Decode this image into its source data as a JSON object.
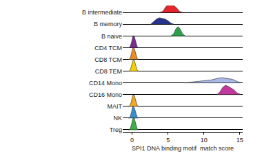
{
  "chart_data": {
    "type": "ridgeline",
    "xlabel": "SPI1 DNA binding motif  match score",
    "xlim": [
      -1.3,
      15.4
    ],
    "xticks": [
      0,
      5,
      10,
      15
    ],
    "grid": true,
    "categories": [
      "B intermediate",
      "B memory",
      "B naive",
      "CD4 TCM",
      "CD8 TCM",
      "CD8 TEM",
      "CD14 Mono",
      "CD16 Mono",
      "MAIT",
      "NK",
      "Treg"
    ],
    "series": [
      {
        "name": "B intermediate",
        "color": "#e3262b",
        "x": [
          3.8,
          4.3,
          4.7,
          5.0,
          5.3,
          5.6,
          5.9,
          6.2,
          6.6,
          7.0
        ],
        "values": [
          0,
          0.1,
          0.5,
          0.65,
          0.7,
          0.6,
          0.55,
          0.4,
          0.1,
          0
        ]
      },
      {
        "name": "B memory",
        "color": "#27338f",
        "x": [
          2.6,
          3.0,
          3.4,
          3.8,
          4.2,
          4.6,
          5.0,
          5.4,
          5.8
        ],
        "values": [
          0,
          0.2,
          0.45,
          0.55,
          0.5,
          0.45,
          0.3,
          0.1,
          0
        ]
      },
      {
        "name": "B naive",
        "color": "#2ca048",
        "x": [
          5.4,
          5.8,
          6.1,
          6.4,
          6.7,
          7.0,
          7.4
        ],
        "values": [
          0,
          0.2,
          0.6,
          0.8,
          0.6,
          0.2,
          0
        ]
      },
      {
        "name": "CD4 TCM",
        "color": "#7b2d8e",
        "x": [
          -0.5,
          -0.3,
          -0.1,
          0.1,
          0.3,
          0.5,
          0.7,
          0.9
        ],
        "values": [
          0,
          0.05,
          0.4,
          0.95,
          1.0,
          0.5,
          0.1,
          0
        ]
      },
      {
        "name": "CD8 TCM",
        "color": "#f08a24",
        "x": [
          -0.5,
          -0.3,
          -0.1,
          0.1,
          0.3,
          0.5,
          0.7,
          0.9
        ],
        "values": [
          0,
          0.05,
          0.45,
          1.0,
          0.95,
          0.45,
          0.1,
          0
        ]
      },
      {
        "name": "CD8 TEM",
        "color": "#f5d000",
        "x": [
          -0.5,
          -0.3,
          -0.1,
          0.1,
          0.3,
          0.5,
          0.7,
          0.9
        ],
        "values": [
          0,
          0.05,
          0.4,
          0.9,
          0.95,
          0.5,
          0.1,
          0
        ]
      },
      {
        "name": "CD14 Mono",
        "color": "#a9b8e6",
        "x": [
          7.2,
          8,
          9,
          10,
          11,
          12,
          12.5,
          13,
          13.5,
          14,
          14.5,
          15.2
        ],
        "values": [
          0,
          0.05,
          0.1,
          0.15,
          0.25,
          0.4,
          0.45,
          0.4,
          0.35,
          0.3,
          0.15,
          0
        ]
      },
      {
        "name": "CD16 Mono",
        "color": "#c2379b",
        "x": [
          11.8,
          12.2,
          12.6,
          13.0,
          13.4,
          13.8,
          14.2,
          14.6,
          15.2
        ],
        "values": [
          0,
          0.2,
          0.6,
          0.8,
          0.7,
          0.55,
          0.4,
          0.15,
          0
        ]
      },
      {
        "name": "MAIT",
        "color": "#f5a623",
        "x": [
          -0.5,
          -0.3,
          -0.1,
          0.1,
          0.3,
          0.5,
          0.7,
          0.9
        ],
        "values": [
          0,
          0.05,
          0.4,
          0.95,
          0.95,
          0.45,
          0.1,
          0
        ]
      },
      {
        "name": "NK",
        "color": "#3a8fd0",
        "x": [
          -0.5,
          -0.3,
          -0.1,
          0.1,
          0.3,
          0.5,
          0.7,
          0.9
        ],
        "values": [
          0,
          0.05,
          0.45,
          1.0,
          0.9,
          0.45,
          0.1,
          0
        ]
      },
      {
        "name": "Treg",
        "color": "#3cb043",
        "x": [
          -0.5,
          -0.3,
          -0.1,
          0.1,
          0.3,
          0.5,
          0.7,
          0.9
        ],
        "values": [
          0,
          0.05,
          0.4,
          0.95,
          1.0,
          0.5,
          0.1,
          0
        ]
      }
    ]
  }
}
